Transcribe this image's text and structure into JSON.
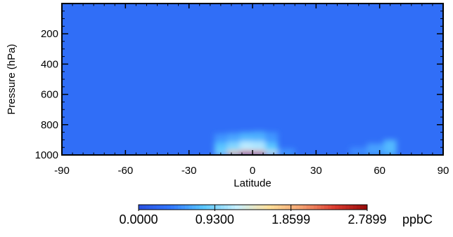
{
  "chart_data": {
    "type": "heatmap",
    "title": "",
    "xlabel": "Latitude",
    "ylabel": "Pressure (hPa)",
    "xlim": [
      -90,
      90
    ],
    "ylim": [
      1000,
      0
    ],
    "x_ticks": [
      -90,
      -60,
      -30,
      0,
      30,
      60,
      90
    ],
    "y_ticks": [
      200,
      400,
      600,
      800,
      1000
    ],
    "colorbar": {
      "min": 0.0,
      "max": 2.7899,
      "tick_labels": [
        "0.0000",
        "0.9300",
        "1.8599",
        "2.7899"
      ],
      "tick_values": [
        0.0,
        0.93,
        1.8599,
        2.7899
      ],
      "units": "ppbC",
      "colors": [
        "#2a50e0",
        "#3278ff",
        "#5ac8ff",
        "#c8f0ff",
        "#ffe09a",
        "#f4a070",
        "#dc3c30",
        "#960a0a"
      ]
    },
    "background_value": 0.3,
    "cells": [
      {
        "lat": [
          -18,
          -12
        ],
        "p": [
          860,
          920
        ],
        "v": 0.55
      },
      {
        "lat": [
          -12,
          -6
        ],
        "p": [
          855,
          920
        ],
        "v": 0.62
      },
      {
        "lat": [
          -6,
          0
        ],
        "p": [
          850,
          920
        ],
        "v": 0.7
      },
      {
        "lat": [
          0,
          6
        ],
        "p": [
          845,
          920
        ],
        "v": 0.68
      },
      {
        "lat": [
          6,
          12
        ],
        "p": [
          850,
          920
        ],
        "v": 0.55
      },
      {
        "lat": [
          -18,
          -12
        ],
        "p": [
          920,
          975
        ],
        "v": 0.78
      },
      {
        "lat": [
          -12,
          -6
        ],
        "p": [
          915,
          975
        ],
        "v": 0.95
      },
      {
        "lat": [
          -6,
          0
        ],
        "p": [
          910,
          975
        ],
        "v": 1.15
      },
      {
        "lat": [
          0,
          6
        ],
        "p": [
          910,
          975
        ],
        "v": 1.1
      },
      {
        "lat": [
          6,
          12
        ],
        "p": [
          920,
          975
        ],
        "v": 0.8
      },
      {
        "lat": [
          -18,
          -12
        ],
        "p": [
          975,
          1000
        ],
        "v": 0.95
      },
      {
        "lat": [
          -12,
          -6
        ],
        "p": [
          975,
          1000
        ],
        "v": 1.7
      },
      {
        "lat": [
          -6,
          0
        ],
        "p": [
          975,
          1000
        ],
        "v": 2.3
      },
      {
        "lat": [
          0,
          6
        ],
        "p": [
          975,
          1000
        ],
        "v": 2.15
      },
      {
        "lat": [
          6,
          12
        ],
        "p": [
          975,
          1000
        ],
        "v": 1.3
      },
      {
        "lat": [
          12,
          20
        ],
        "p": [
          960,
          1000
        ],
        "v": 0.55
      },
      {
        "lat": [
          46,
          54
        ],
        "p": [
          950,
          1000
        ],
        "v": 0.5
      },
      {
        "lat": [
          54,
          62
        ],
        "p": [
          925,
          1000
        ],
        "v": 0.6
      },
      {
        "lat": [
          62,
          68
        ],
        "p": [
          900,
          1000
        ],
        "v": 0.72
      }
    ]
  }
}
